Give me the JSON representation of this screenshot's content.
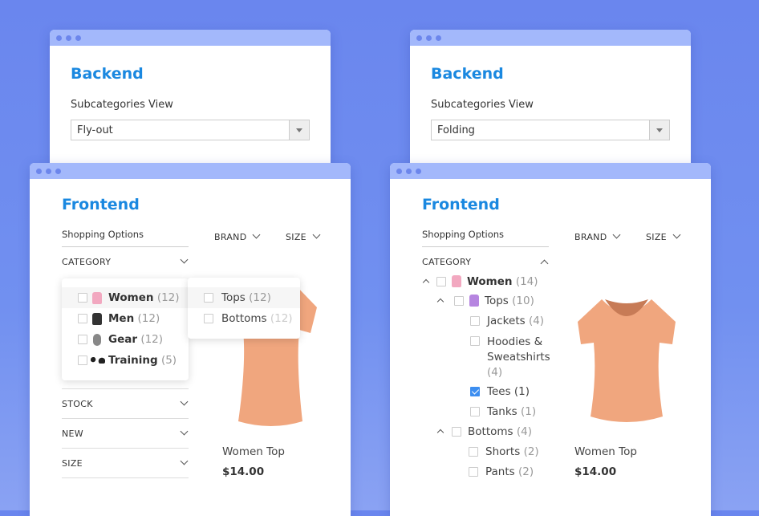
{
  "left": {
    "backend": {
      "title": "Backend",
      "label": "Subcategories View",
      "value": "Fly-out"
    },
    "frontend": {
      "title": "Frontend",
      "shopping_options": "Shopping Options",
      "top_filters": [
        {
          "label": "BRAND"
        },
        {
          "label": "SIZE"
        }
      ],
      "category": "CATEGORY",
      "categories": [
        {
          "name": "Women",
          "count": "(12)",
          "icon": "dress-icon"
        },
        {
          "name": "Men",
          "count": "(12)",
          "icon": "jacket-icon"
        },
        {
          "name": "Gear",
          "count": "(12)",
          "icon": "watch-icon"
        },
        {
          "name": "Training",
          "count": "(5)",
          "icon": "dumbbell-icon"
        }
      ],
      "flyout": [
        {
          "name": "Tops",
          "count": "(12)"
        },
        {
          "name": "Bottoms",
          "count": "(12)"
        }
      ],
      "filters": [
        {
          "label": "STOCK"
        },
        {
          "label": "NEW"
        },
        {
          "label": "SIZE"
        }
      ],
      "product": {
        "name": "Women Top",
        "price": "$14.00"
      }
    }
  },
  "right": {
    "backend": {
      "title": "Backend",
      "label": "Subcategories View",
      "value": "Folding"
    },
    "frontend": {
      "title": "Frontend",
      "shopping_options": "Shopping Options",
      "top_filters": [
        {
          "label": "BRAND"
        },
        {
          "label": "SIZE"
        }
      ],
      "category": "CATEGORY",
      "tree": {
        "women": {
          "name": "Women",
          "count": "(14)"
        },
        "tops": {
          "name": "Tops",
          "count": "(10)"
        },
        "jackets": {
          "name": "Jackets",
          "count": "(4)"
        },
        "hoodies": {
          "name1": "Hoodies &",
          "name2": "Sweatshirts",
          "count": "(4)"
        },
        "tees": {
          "name": "Tees",
          "count": "(1)",
          "checked": true
        },
        "tanks": {
          "name": "Tanks",
          "count": "(1)"
        },
        "bottoms": {
          "name": "Bottoms",
          "count": "(4)"
        },
        "shorts": {
          "name": "Shorts",
          "count": "(2)"
        },
        "pants": {
          "name": "Pants",
          "count": "(2)"
        }
      },
      "product": {
        "name": "Women Top",
        "price": "$14.00"
      }
    }
  },
  "colors": {
    "accent": "#1a88e0",
    "titlebar": "#a3b8fb",
    "checkbox_checked": "#3d8ef0",
    "product": "#f0a67e"
  }
}
